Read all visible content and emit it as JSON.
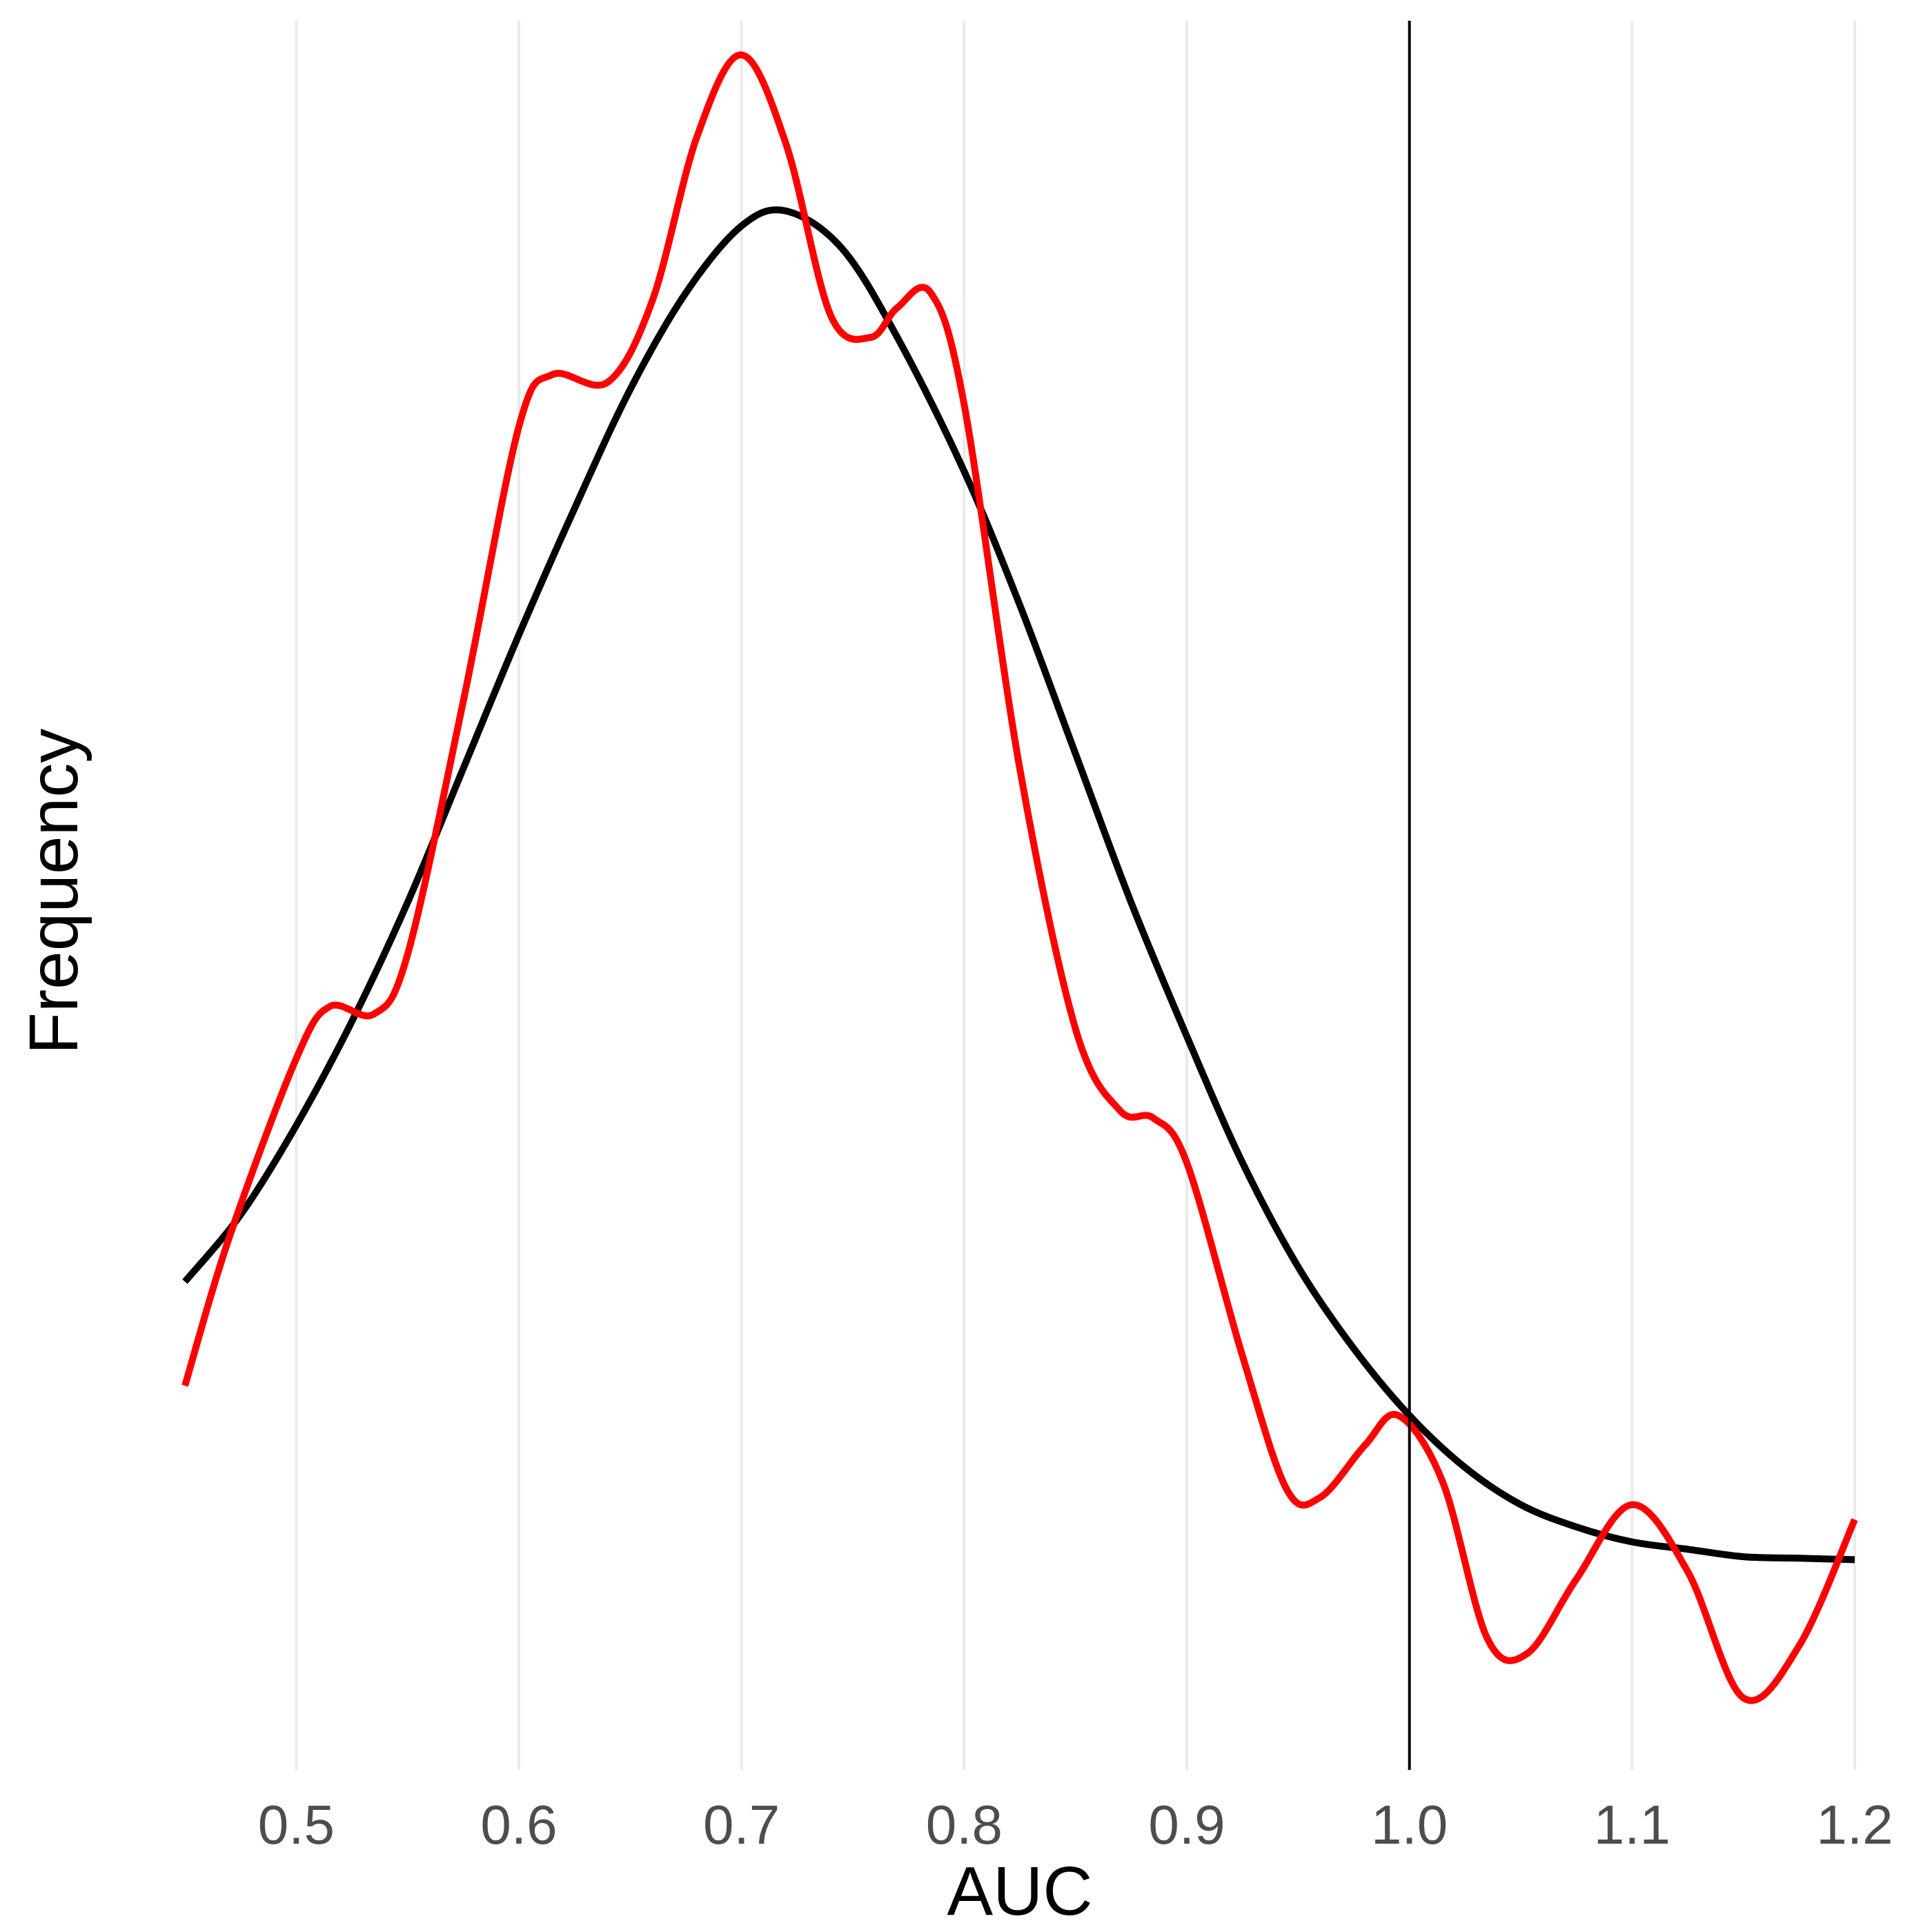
{
  "chart_data": {
    "type": "line",
    "title": "",
    "xlabel": "AUC",
    "ylabel": "Frequency",
    "xlim": [
      0.45,
      1.2
    ],
    "ylim": [
      0,
      1.05
    ],
    "x_ticks": [
      0.5,
      0.6,
      0.7,
      0.8,
      0.9,
      1.0,
      1.1,
      1.2
    ],
    "x_tick_labels": [
      "0.5",
      "0.6",
      "0.7",
      "0.8",
      "0.9",
      "1.0",
      "1.1",
      "1.2"
    ],
    "y_ticks_shown": false,
    "grid": "vertical major lines",
    "vline": {
      "x": 1.0,
      "color": "#000000"
    },
    "series": [
      {
        "color": "#000000",
        "x": [
          0.45,
          0.475,
          0.5,
          0.525,
          0.55,
          0.575,
          0.6,
          0.625,
          0.65,
          0.675,
          0.7,
          0.72,
          0.745,
          0.77,
          0.8,
          0.825,
          0.85,
          0.875,
          0.9,
          0.925,
          0.95,
          0.975,
          1.0,
          1.025,
          1.05,
          1.075,
          1.1,
          1.125,
          1.15,
          1.175,
          1.2
        ],
        "y": [
          0.21,
          0.255,
          0.315,
          0.385,
          0.465,
          0.555,
          0.645,
          0.73,
          0.81,
          0.875,
          0.92,
          0.93,
          0.905,
          0.845,
          0.755,
          0.665,
          0.565,
          0.465,
          0.375,
          0.29,
          0.22,
          0.165,
          0.12,
          0.085,
          0.06,
          0.045,
          0.035,
          0.03,
          0.025,
          0.024,
          0.023
        ]
      },
      {
        "color": "#ff0000",
        "x": [
          0.45,
          0.47,
          0.5,
          0.515,
          0.535,
          0.55,
          0.575,
          0.6,
          0.615,
          0.64,
          0.66,
          0.68,
          0.7,
          0.72,
          0.74,
          0.758,
          0.77,
          0.785,
          0.8,
          0.825,
          0.85,
          0.87,
          0.885,
          0.9,
          0.925,
          0.945,
          0.96,
          0.98,
          0.995,
          1.015,
          1.035,
          1.053,
          1.075,
          1.1,
          1.125,
          1.15,
          1.175,
          1.2
        ],
        "y": [
          0.14,
          0.24,
          0.36,
          0.395,
          0.39,
          0.43,
          0.6,
          0.785,
          0.82,
          0.815,
          0.87,
          0.98,
          1.035,
          0.975,
          0.86,
          0.845,
          0.865,
          0.875,
          0.8,
          0.555,
          0.38,
          0.325,
          0.32,
          0.29,
          0.16,
          0.07,
          0.065,
          0.1,
          0.12,
          0.075,
          -0.03,
          -0.04,
          0.01,
          0.06,
          0.015,
          -0.07,
          -0.035,
          0.05
        ]
      }
    ]
  }
}
